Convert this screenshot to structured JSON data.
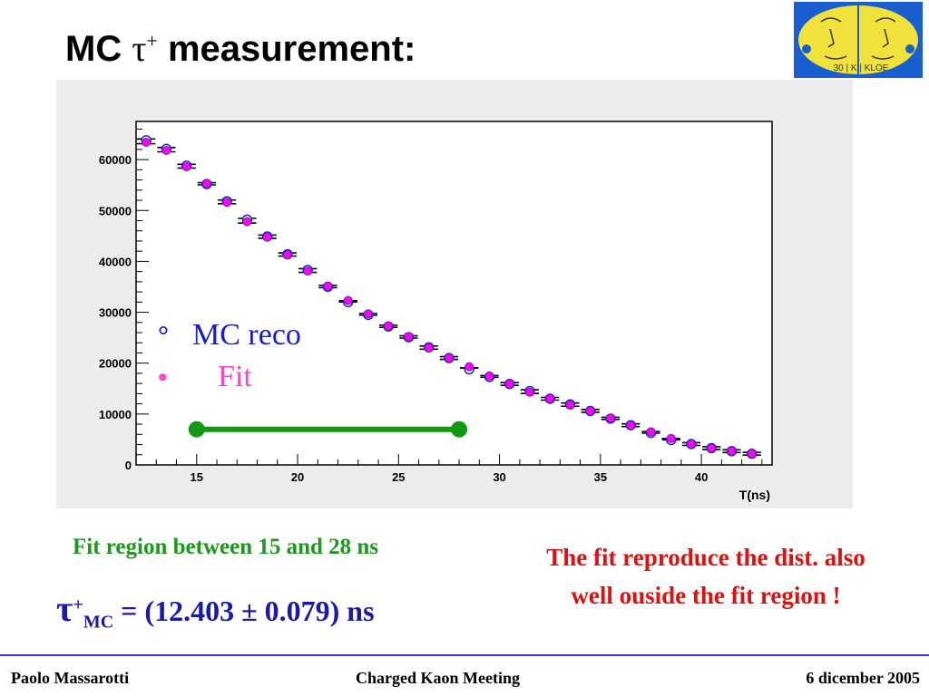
{
  "slide": {
    "title_prefix": "MC ",
    "title_tau": "τ",
    "title_sup": "+",
    "title_suffix": " measurement:"
  },
  "captions": {
    "fit_region": "Fit region between 15 and 28 ns",
    "result_tau": "τ",
    "result_sup": "+",
    "result_sub": "MC",
    "result_value": " = (12.403 ± 0.079) ns",
    "comment": "The fit reproduce the dist. also well ouside the fit region !"
  },
  "footer": {
    "author": "Paolo Massarotti",
    "meeting": "Charged Kaon Meeting",
    "date": "6 dicember 2005"
  },
  "logo": {
    "text": "30 | K | KLOE"
  },
  "chart_data": {
    "type": "scatter",
    "xlabel": "T(ns)",
    "ylabel": "",
    "xlim": [
      12,
      43.5
    ],
    "ylim": [
      0,
      67500
    ],
    "x_ticks": [
      15,
      20,
      25,
      30,
      35,
      40
    ],
    "y_ticks": [
      0,
      10000,
      20000,
      30000,
      40000,
      50000,
      60000
    ],
    "x_bin_width": 1,
    "x": [
      12.5,
      13.5,
      14.5,
      15.5,
      16.5,
      17.5,
      18.5,
      19.5,
      20.5,
      21.5,
      22.5,
      23.5,
      24.5,
      25.5,
      26.5,
      27.5,
      28.5,
      29.5,
      30.5,
      31.5,
      32.5,
      33.5,
      34.5,
      35.5,
      36.5,
      37.5,
      38.5,
      39.5,
      40.5,
      41.5,
      42.5
    ],
    "series": [
      {
        "name": "MC reco",
        "marker": "open-circle",
        "color": "#1a1ad0",
        "values": [
          63800,
          62100,
          58800,
          55200,
          51800,
          48200,
          44900,
          41400,
          38300,
          35000,
          32000,
          29500,
          27200,
          25100,
          23100,
          21000,
          18800,
          17300,
          15900,
          14500,
          13000,
          11900,
          10600,
          9100,
          7800,
          6300,
          4900,
          4100,
          3300,
          2700,
          2200
        ]
      },
      {
        "name": "Fit",
        "marker": "filled-circle",
        "color": "#ff00ff",
        "values": [
          63400,
          61800,
          58600,
          55300,
          51600,
          47800,
          44800,
          41300,
          38100,
          35100,
          32300,
          29700,
          27300,
          25200,
          23000,
          21000,
          19300,
          17500,
          15900,
          14300,
          13000,
          11800,
          10600,
          9200,
          7800,
          6500,
          5200,
          4100,
          3300,
          2700,
          2200
        ]
      }
    ],
    "legend": [
      {
        "symbol": "°",
        "label": "MC reco",
        "color": "#1a1ad0"
      },
      {
        "symbol": "•",
        "label": "Fit",
        "color": "#ff44cc"
      }
    ],
    "legend_position": "left",
    "fit_range": {
      "x_start": 15,
      "x_end": 28,
      "y": 7000,
      "color": "#119911"
    },
    "grid": false
  }
}
